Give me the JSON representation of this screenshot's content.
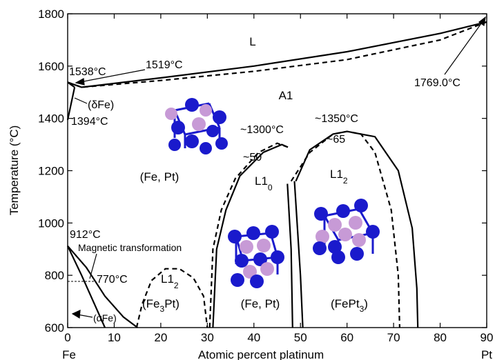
{
  "chart_data": {
    "type": "phase-diagram",
    "xlabel": "Atomic percent platinum",
    "ylabel": "Temperature (°C)",
    "xlim": [
      0,
      90
    ],
    "ylim": [
      600,
      1800
    ],
    "x_ticks": [
      "0",
      "10",
      "20",
      "30",
      "40",
      "50",
      "60",
      "70",
      "80",
      "90"
    ],
    "y_ticks": [
      "600",
      "800",
      "1000",
      "1200",
      "1400",
      "1600",
      "1800"
    ],
    "endpoint_left": "Fe",
    "endpoint_right": "Pt",
    "phases": {
      "liquid": "L",
      "a1": "A1",
      "delta_fe": "(δFe)",
      "alpha_fe": "(αFe)",
      "fe_pt_a1": "(Fe, Pt)",
      "l10_main": "L1",
      "l10_sub": "0",
      "l12_right_main": "L1",
      "l12_right_sub": "2",
      "l12_left_main": "L1",
      "l12_left_sub": "2",
      "fe3pt_pre": "(Fe",
      "fe3pt_sub": "3",
      "fe3pt_post": "Pt)",
      "fept_ordered": "(Fe, Pt)",
      "fept3_pre": "(FePt",
      "fept3_sub": "3",
      "fept3_post": ")"
    },
    "annotations": {
      "t1538": "1538°C",
      "t1519": "1519°C",
      "t1769": "1769.0°C",
      "t1394": "1394°C",
      "t1300": "~1300°C",
      "c50": "~50",
      "t1350": "~1350°C",
      "c65": "~65",
      "t912": "912°C",
      "magnetic": "Magnetic transformation",
      "t770": "770°C"
    },
    "curves": {
      "liquidus": [
        [
          0,
          1538
        ],
        [
          3,
          1519
        ],
        [
          20,
          1555
        ],
        [
          40,
          1600
        ],
        [
          60,
          1655
        ],
        [
          80,
          1725
        ],
        [
          90,
          1769
        ]
      ],
      "solidus": [
        [
          0,
          1538
        ],
        [
          3,
          1519
        ],
        [
          20,
          1545
        ],
        [
          40,
          1580
        ],
        [
          60,
          1625
        ],
        [
          80,
          1700
        ],
        [
          90,
          1769
        ]
      ],
      "delta_upper": [
        [
          0,
          1538
        ],
        [
          1.5,
          1519
        ]
      ],
      "delta_lower": [
        [
          0,
          1394
        ],
        [
          1.5,
          1519
        ]
      ],
      "l10_left_solid": [
        [
          31.2,
          600
        ],
        [
          32,
          900
        ],
        [
          34,
          1050
        ],
        [
          37,
          1180
        ],
        [
          42,
          1270
        ],
        [
          46,
          1300
        ],
        [
          47.3,
          1290
        ]
      ],
      "l10_left_dashed": [
        [
          30.5,
          600
        ],
        [
          31.2,
          900
        ],
        [
          33,
          1050
        ],
        [
          36,
          1170
        ],
        [
          41,
          1270
        ],
        [
          45,
          1305
        ],
        [
          47.3,
          1290
        ]
      ],
      "l10_right": [
        [
          47.2,
          1150
        ],
        [
          48,
          900
        ],
        [
          48.3,
          600
        ]
      ],
      "l12_left_dashed": [
        [
          48,
          1160
        ],
        [
          52,
          1270
        ],
        [
          57,
          1340
        ],
        [
          60,
          1350
        ],
        [
          63,
          1340
        ],
        [
          66,
          1270
        ],
        [
          69.5,
          1050
        ],
        [
          71,
          800
        ],
        [
          71.3,
          600
        ]
      ],
      "l12_right_solid": [
        [
          49,
          1160
        ],
        [
          52,
          1280
        ],
        [
          57,
          1340
        ],
        [
          60,
          1350
        ],
        [
          66,
          1330
        ],
        [
          71,
          1200
        ],
        [
          74,
          980
        ],
        [
          75,
          750
        ],
        [
          75.2,
          600
        ]
      ],
      "l12_inner": [
        [
          48.7,
          1160
        ],
        [
          50,
          800
        ],
        [
          50.5,
          600
        ]
      ],
      "fe3pt_dome": [
        [
          14.8,
          600
        ],
        [
          16,
          690
        ],
        [
          18,
          780
        ],
        [
          21,
          825
        ],
        [
          24,
          825
        ],
        [
          27,
          790
        ],
        [
          29.2,
          720
        ],
        [
          30,
          600
        ]
      ],
      "alpha_boundary_1": [
        [
          0,
          912
        ],
        [
          4,
          830
        ],
        [
          8,
          720
        ],
        [
          12,
          640
        ],
        [
          15,
          600
        ]
      ],
      "alpha_boundary_2": [
        [
          0,
          912
        ],
        [
          3,
          800
        ],
        [
          6,
          680
        ],
        [
          8,
          600
        ]
      ]
    }
  }
}
